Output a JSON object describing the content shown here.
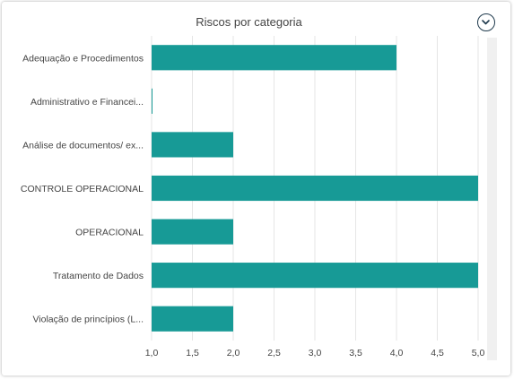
{
  "header": {
    "menu_icon": "chevron-down-icon"
  },
  "colors": {
    "bar": "#179a96",
    "grid": "#e6e6e6",
    "text": "#444444"
  },
  "chart_data": {
    "type": "bar",
    "orientation": "horizontal",
    "title": "Riscos por categoria",
    "categories": [
      "Adequação e Procedimentos",
      "Administrativo e Financei...",
      "Análise de documentos/ ex...",
      "CONTROLE OPERACIONAL",
      "OPERACIONAL",
      "Tratamento de Dados",
      "Violação de princípios (L..."
    ],
    "values": [
      4,
      1,
      2,
      5,
      2,
      5,
      2
    ],
    "xlim": [
      1,
      5
    ],
    "xticks": [
      "1,0",
      "1,5",
      "2,0",
      "2,5",
      "3,0",
      "3,5",
      "4,0",
      "4,5",
      "5,0"
    ],
    "grid": "vertical",
    "legend": "none"
  }
}
